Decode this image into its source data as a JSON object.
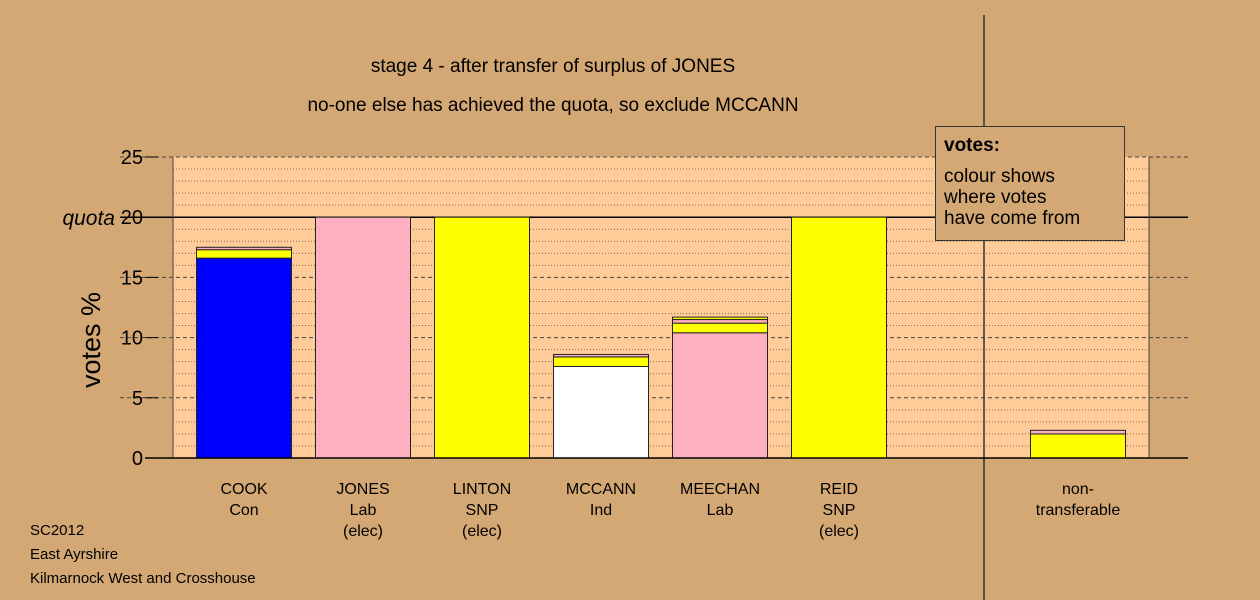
{
  "chart_data": {
    "type": "bar",
    "title": "stage 4 - after transfer of surplus of JONES",
    "subtitle": "no-one else has achieved the quota, so exclude MCCANN",
    "ylabel": "votes %",
    "ylim": [
      0,
      25
    ],
    "yticks": [
      "0",
      "5",
      "10",
      "15",
      "20",
      "25"
    ],
    "quota_value": 20,
    "quota_label": "quota",
    "grid": true,
    "categories": [
      {
        "name": "COOK",
        "party": "Con",
        "status": ""
      },
      {
        "name": "JONES",
        "party": "Lab",
        "status": "(elec)"
      },
      {
        "name": "LINTON",
        "party": "SNP",
        "status": "(elec)"
      },
      {
        "name": "MCCANN",
        "party": "Ind",
        "status": ""
      },
      {
        "name": "MEECHAN",
        "party": "Lab",
        "status": ""
      },
      {
        "name": "REID",
        "party": "SNP",
        "status": "(elec)"
      },
      {
        "name": "non-",
        "party": "transferable",
        "status": ""
      }
    ],
    "bars": [
      {
        "segments": [
          {
            "value": 16.6,
            "color": "#0000ff"
          },
          {
            "value": 0.7,
            "color": "#ffff00"
          },
          {
            "value": 0.2,
            "color": "#ffb0c0"
          }
        ]
      },
      {
        "segments": [
          {
            "value": 20.0,
            "color": "#ffb0c0"
          }
        ]
      },
      {
        "segments": [
          {
            "value": 20.0,
            "color": "#ffff00"
          }
        ]
      },
      {
        "segments": [
          {
            "value": 7.6,
            "color": "#ffffff"
          },
          {
            "value": 0.8,
            "color": "#ffff00"
          },
          {
            "value": 0.2,
            "color": "#ffb0c0"
          }
        ]
      },
      {
        "segments": [
          {
            "value": 10.4,
            "color": "#ffb0c0"
          },
          {
            "value": 0.8,
            "color": "#ffff00"
          },
          {
            "value": 0.3,
            "color": "#ffb0c0"
          },
          {
            "value": 0.2,
            "color": "#ffff00"
          }
        ]
      },
      {
        "segments": [
          {
            "value": 20.0,
            "color": "#ffff00"
          }
        ]
      },
      {
        "segments": [
          {
            "value": 2.0,
            "color": "#ffff00"
          },
          {
            "value": 0.3,
            "color": "#ffb0c0"
          }
        ]
      }
    ]
  },
  "legend": {
    "title": "votes:",
    "lines": [
      "colour shows",
      "where votes",
      "have come from"
    ]
  },
  "footer": {
    "line1": "SC2012",
    "line2": "East Ayrshire",
    "line3": "Kilmarnock West and Crosshouse"
  },
  "colors": {
    "background": "#d4a874",
    "plot_area": "#ffcc99"
  }
}
